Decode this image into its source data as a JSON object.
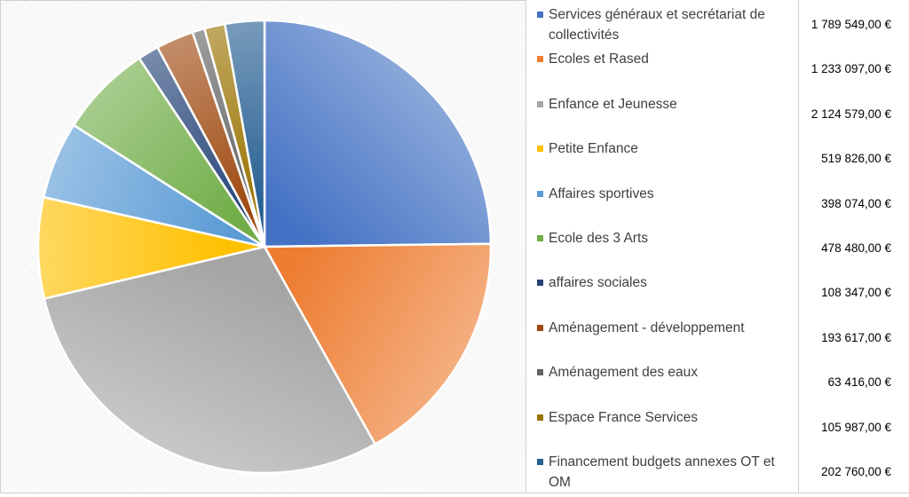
{
  "chart_data": {
    "type": "pie",
    "categories": [
      "Services généraux et secrétariat de collectivités",
      "Ecoles et Rased",
      "Enfance et Jeunesse",
      "Petite Enfance",
      "Affaires sportives",
      "Ecole des 3 Arts",
      "affaires sociales",
      "Aménagement - développement",
      "Aménagement des eaux",
      "Espace France Services",
      "Financement budgets annexes OT et OM"
    ],
    "values": [
      1789549,
      1233097,
      2124579,
      519826,
      398074,
      478480,
      108347,
      193617,
      63416,
      105987,
      202760
    ],
    "value_labels": [
      "1 789 549,00 €",
      "1 233 097,00 €",
      "2 124 579,00 €",
      "519 826,00 €",
      "398 074,00 €",
      "478 480,00 €",
      "108 347,00 €",
      "193 617,00 €",
      "63 416,00 €",
      "105 987,00 €",
      "202 760,00 €"
    ],
    "colors": [
      "#4472c4",
      "#ed7d31",
      "#a5a5a5",
      "#ffc000",
      "#5b9bd5",
      "#70ad47",
      "#264478",
      "#9e480e",
      "#636363",
      "#997300",
      "#255e91"
    ],
    "start_angle_deg": 0,
    "direction": "clockwise",
    "legend_position": "right"
  }
}
